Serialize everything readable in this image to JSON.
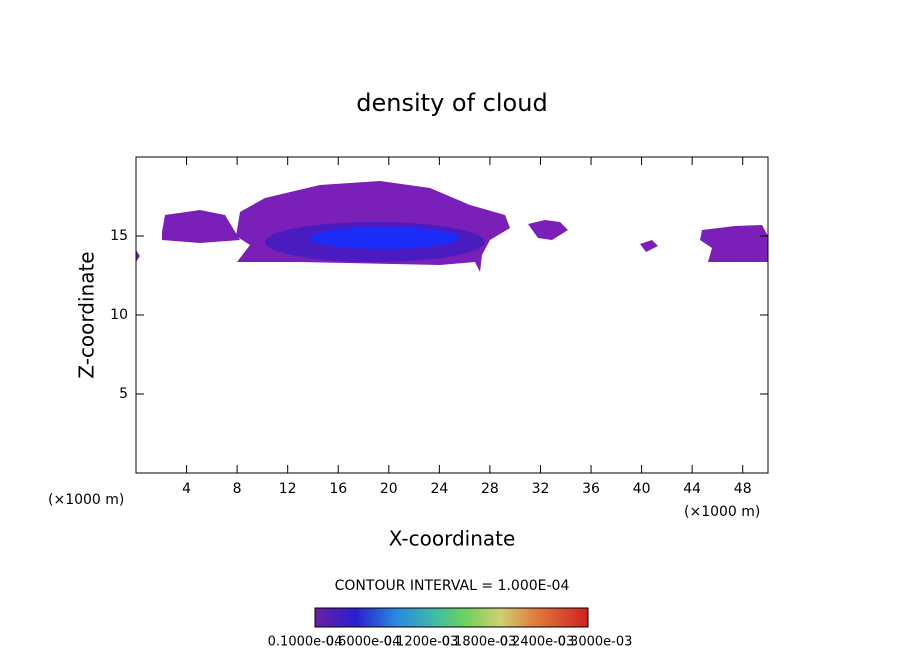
{
  "chart_data": {
    "type": "contour",
    "title": "density of cloud",
    "x_label": "X-coordinate",
    "y_label": "Z-coordinate",
    "x_unit_left": "(×1000 m)",
    "x_unit_right": "(×1000 m)",
    "xlim": [
      0,
      50
    ],
    "ylim": [
      0,
      20
    ],
    "xticks": [
      4,
      8,
      12,
      16,
      20,
      24,
      28,
      32,
      36,
      40,
      44,
      48
    ],
    "yticks": [
      5,
      10,
      15
    ],
    "contour_interval": "CONTOUR INTERVAL = 1.000E-04",
    "colorbar_labels": [
      "0.1000e-04",
      "0.6000e-04",
      "0.1200e-03",
      "0.1800e-03",
      "0.2400e-03",
      "0.3000e-03"
    ]
  }
}
